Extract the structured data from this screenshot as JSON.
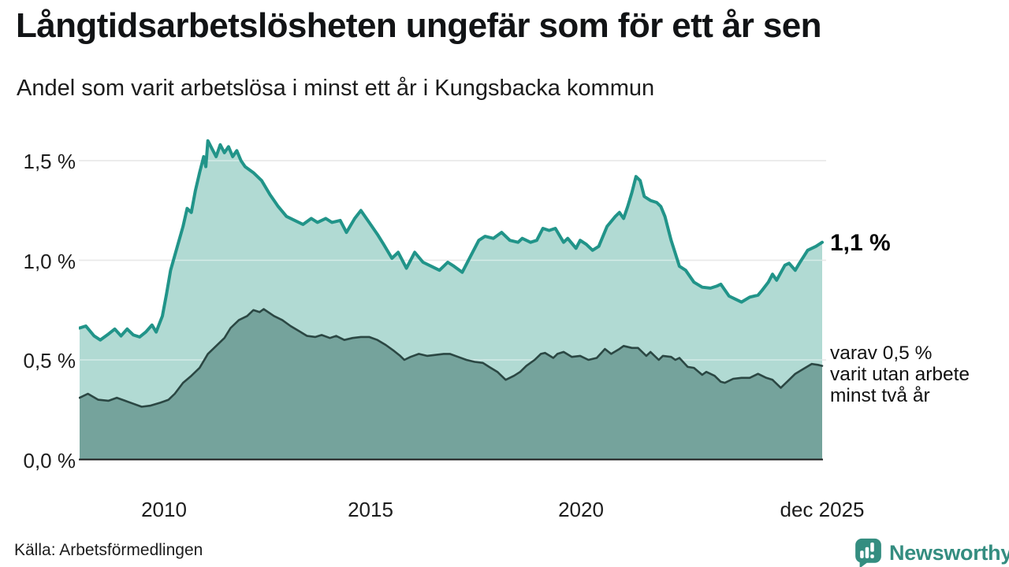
{
  "header": {
    "title": "Långtidsarbetslösheten ungefär som för ett år sen",
    "subtitle": "Andel som varit arbetslösa i minst ett år i Kungsbacka kommun"
  },
  "annotations": {
    "latest_total": "1,1 %",
    "secondary_lines": [
      "varav 0,5 %",
      "varit utan arbete",
      "minst två år"
    ]
  },
  "footer": {
    "source": "Källa: Arbetsförmedlingen",
    "brand": "Newsworthy"
  },
  "colors": {
    "line_one_year": "#219489",
    "fill_one_year": "#b1dad3",
    "line_two_year": "#2b4743",
    "fill_two_year": "#75a39c",
    "gridline": "#d8d8d8",
    "axis_line": "#1a1a1a",
    "brand_teal": "#348d80"
  },
  "chart_data": {
    "type": "area",
    "title": "Långtidsarbetslösheten ungefär som för ett år sen",
    "subtitle": "Andel som varit arbetslösa i minst ett år i Kungsbacka kommun",
    "xlabel": "",
    "ylabel": "",
    "grid": true,
    "legend_position": "none",
    "x_range": [
      2008.0,
      2025.97
    ],
    "x_axis": {
      "ticks": [
        {
          "label": "2010",
          "year": 2010
        },
        {
          "label": "2015",
          "year": 2015
        },
        {
          "label": "2020",
          "year": 2020
        },
        {
          "label": "dec 2025",
          "year": 2025.92
        }
      ]
    },
    "y_axis": {
      "range": [
        0,
        1.66
      ],
      "unit": "%",
      "ticks": [
        {
          "label": "0,0 %",
          "value": 0.0
        },
        {
          "label": "0,5 %",
          "value": 0.5
        },
        {
          "label": "1,0 %",
          "value": 1.0
        },
        {
          "label": "1,5 %",
          "value": 1.5
        }
      ]
    },
    "series": [
      {
        "name": "Andel arbetslösa minst ett år",
        "color": "#219489",
        "fill": "#b1dad3",
        "line_width": 4,
        "last_value_label": "1,1 %",
        "points": [
          [
            2008.0,
            0.66
          ],
          [
            2008.15,
            0.67
          ],
          [
            2008.35,
            0.62
          ],
          [
            2008.5,
            0.6
          ],
          [
            2008.7,
            0.63
          ],
          [
            2008.85,
            0.655
          ],
          [
            2009.0,
            0.62
          ],
          [
            2009.15,
            0.655
          ],
          [
            2009.3,
            0.625
          ],
          [
            2009.45,
            0.615
          ],
          [
            2009.6,
            0.64
          ],
          [
            2009.75,
            0.675
          ],
          [
            2009.85,
            0.64
          ],
          [
            2010.0,
            0.72
          ],
          [
            2010.1,
            0.83
          ],
          [
            2010.2,
            0.95
          ],
          [
            2010.35,
            1.06
          ],
          [
            2010.5,
            1.17
          ],
          [
            2010.6,
            1.26
          ],
          [
            2010.7,
            1.24
          ],
          [
            2010.8,
            1.35
          ],
          [
            2010.9,
            1.44
          ],
          [
            2011.0,
            1.52
          ],
          [
            2011.05,
            1.47
          ],
          [
            2011.1,
            1.6
          ],
          [
            2011.2,
            1.56
          ],
          [
            2011.3,
            1.52
          ],
          [
            2011.4,
            1.58
          ],
          [
            2011.5,
            1.54
          ],
          [
            2011.6,
            1.57
          ],
          [
            2011.7,
            1.52
          ],
          [
            2011.8,
            1.55
          ],
          [
            2011.9,
            1.5
          ],
          [
            2012.0,
            1.47
          ],
          [
            2012.2,
            1.44
          ],
          [
            2012.4,
            1.4
          ],
          [
            2012.6,
            1.33
          ],
          [
            2012.8,
            1.27
          ],
          [
            2013.0,
            1.22
          ],
          [
            2013.2,
            1.2
          ],
          [
            2013.4,
            1.18
          ],
          [
            2013.6,
            1.21
          ],
          [
            2013.75,
            1.19
          ],
          [
            2013.95,
            1.21
          ],
          [
            2014.1,
            1.19
          ],
          [
            2014.3,
            1.2
          ],
          [
            2014.45,
            1.14
          ],
          [
            2014.65,
            1.21
          ],
          [
            2014.8,
            1.25
          ],
          [
            2015.0,
            1.19
          ],
          [
            2015.2,
            1.13
          ],
          [
            2015.35,
            1.08
          ],
          [
            2015.55,
            1.01
          ],
          [
            2015.7,
            1.04
          ],
          [
            2015.9,
            0.96
          ],
          [
            2016.1,
            1.04
          ],
          [
            2016.3,
            0.99
          ],
          [
            2016.5,
            0.97
          ],
          [
            2016.7,
            0.95
          ],
          [
            2016.9,
            0.99
          ],
          [
            2017.05,
            0.97
          ],
          [
            2017.25,
            0.94
          ],
          [
            2017.45,
            1.02
          ],
          [
            2017.65,
            1.1
          ],
          [
            2017.8,
            1.12
          ],
          [
            2018.0,
            1.11
          ],
          [
            2018.2,
            1.14
          ],
          [
            2018.4,
            1.1
          ],
          [
            2018.6,
            1.09
          ],
          [
            2018.7,
            1.11
          ],
          [
            2018.9,
            1.09
          ],
          [
            2019.05,
            1.1
          ],
          [
            2019.2,
            1.16
          ],
          [
            2019.35,
            1.15
          ],
          [
            2019.5,
            1.16
          ],
          [
            2019.7,
            1.09
          ],
          [
            2019.8,
            1.11
          ],
          [
            2020.0,
            1.06
          ],
          [
            2020.1,
            1.1
          ],
          [
            2020.25,
            1.08
          ],
          [
            2020.4,
            1.05
          ],
          [
            2020.55,
            1.07
          ],
          [
            2020.75,
            1.17
          ],
          [
            2020.95,
            1.22
          ],
          [
            2021.05,
            1.24
          ],
          [
            2021.15,
            1.21
          ],
          [
            2021.25,
            1.27
          ],
          [
            2021.35,
            1.34
          ],
          [
            2021.45,
            1.42
          ],
          [
            2021.55,
            1.4
          ],
          [
            2021.65,
            1.32
          ],
          [
            2021.8,
            1.3
          ],
          [
            2021.95,
            1.29
          ],
          [
            2022.05,
            1.27
          ],
          [
            2022.15,
            1.22
          ],
          [
            2022.3,
            1.1
          ],
          [
            2022.5,
            0.97
          ],
          [
            2022.65,
            0.95
          ],
          [
            2022.85,
            0.89
          ],
          [
            2023.05,
            0.865
          ],
          [
            2023.25,
            0.86
          ],
          [
            2023.4,
            0.87
          ],
          [
            2023.5,
            0.88
          ],
          [
            2023.7,
            0.82
          ],
          [
            2023.9,
            0.8
          ],
          [
            2024.0,
            0.79
          ],
          [
            2024.2,
            0.815
          ],
          [
            2024.4,
            0.825
          ],
          [
            2024.5,
            0.85
          ],
          [
            2024.65,
            0.89
          ],
          [
            2024.75,
            0.93
          ],
          [
            2024.85,
            0.9
          ],
          [
            2025.05,
            0.975
          ],
          [
            2025.15,
            0.985
          ],
          [
            2025.3,
            0.95
          ],
          [
            2025.4,
            0.985
          ],
          [
            2025.6,
            1.05
          ],
          [
            2025.8,
            1.07
          ],
          [
            2025.95,
            1.09
          ]
        ]
      },
      {
        "name": "Andel arbetslösa minst två år",
        "color": "#2b4743",
        "fill": "#75a39c",
        "line_width": 2.6,
        "last_value_label": "0,5 %",
        "points": [
          [
            2008.0,
            0.31
          ],
          [
            2008.2,
            0.33
          ],
          [
            2008.45,
            0.3
          ],
          [
            2008.7,
            0.295
          ],
          [
            2008.9,
            0.31
          ],
          [
            2009.1,
            0.295
          ],
          [
            2009.3,
            0.28
          ],
          [
            2009.5,
            0.265
          ],
          [
            2009.7,
            0.27
          ],
          [
            2009.95,
            0.285
          ],
          [
            2010.15,
            0.3
          ],
          [
            2010.3,
            0.33
          ],
          [
            2010.5,
            0.385
          ],
          [
            2010.7,
            0.42
          ],
          [
            2010.9,
            0.46
          ],
          [
            2011.1,
            0.53
          ],
          [
            2011.3,
            0.57
          ],
          [
            2011.5,
            0.61
          ],
          [
            2011.65,
            0.66
          ],
          [
            2011.85,
            0.7
          ],
          [
            2012.05,
            0.72
          ],
          [
            2012.2,
            0.75
          ],
          [
            2012.35,
            0.74
          ],
          [
            2012.45,
            0.755
          ],
          [
            2012.7,
            0.72
          ],
          [
            2012.9,
            0.7
          ],
          [
            2013.1,
            0.67
          ],
          [
            2013.3,
            0.645
          ],
          [
            2013.5,
            0.62
          ],
          [
            2013.7,
            0.615
          ],
          [
            2013.85,
            0.625
          ],
          [
            2014.05,
            0.61
          ],
          [
            2014.2,
            0.62
          ],
          [
            2014.4,
            0.6
          ],
          [
            2014.6,
            0.61
          ],
          [
            2014.8,
            0.615
          ],
          [
            2015.0,
            0.615
          ],
          [
            2015.2,
            0.6
          ],
          [
            2015.4,
            0.575
          ],
          [
            2015.6,
            0.545
          ],
          [
            2015.75,
            0.52
          ],
          [
            2015.85,
            0.5
          ],
          [
            2016.0,
            0.515
          ],
          [
            2016.2,
            0.53
          ],
          [
            2016.4,
            0.52
          ],
          [
            2016.6,
            0.525
          ],
          [
            2016.8,
            0.53
          ],
          [
            2016.95,
            0.53
          ],
          [
            2017.15,
            0.515
          ],
          [
            2017.35,
            0.5
          ],
          [
            2017.55,
            0.49
          ],
          [
            2017.75,
            0.485
          ],
          [
            2017.9,
            0.465
          ],
          [
            2018.1,
            0.44
          ],
          [
            2018.3,
            0.4
          ],
          [
            2018.5,
            0.42
          ],
          [
            2018.65,
            0.44
          ],
          [
            2018.8,
            0.47
          ],
          [
            2019.0,
            0.5
          ],
          [
            2019.15,
            0.53
          ],
          [
            2019.25,
            0.535
          ],
          [
            2019.45,
            0.51
          ],
          [
            2019.55,
            0.53
          ],
          [
            2019.7,
            0.54
          ],
          [
            2019.9,
            0.515
          ],
          [
            2020.1,
            0.52
          ],
          [
            2020.3,
            0.5
          ],
          [
            2020.5,
            0.51
          ],
          [
            2020.7,
            0.555
          ],
          [
            2020.85,
            0.53
          ],
          [
            2021.05,
            0.555
          ],
          [
            2021.15,
            0.57
          ],
          [
            2021.35,
            0.56
          ],
          [
            2021.5,
            0.56
          ],
          [
            2021.7,
            0.52
          ],
          [
            2021.8,
            0.54
          ],
          [
            2022.0,
            0.5
          ],
          [
            2022.1,
            0.52
          ],
          [
            2022.3,
            0.515
          ],
          [
            2022.4,
            0.5
          ],
          [
            2022.5,
            0.51
          ],
          [
            2022.7,
            0.465
          ],
          [
            2022.85,
            0.46
          ],
          [
            2023.05,
            0.425
          ],
          [
            2023.15,
            0.44
          ],
          [
            2023.35,
            0.42
          ],
          [
            2023.5,
            0.39
          ],
          [
            2023.6,
            0.385
          ],
          [
            2023.8,
            0.405
          ],
          [
            2024.0,
            0.41
          ],
          [
            2024.2,
            0.41
          ],
          [
            2024.4,
            0.43
          ],
          [
            2024.6,
            0.41
          ],
          [
            2024.75,
            0.4
          ],
          [
            2024.95,
            0.36
          ],
          [
            2025.15,
            0.4
          ],
          [
            2025.3,
            0.43
          ],
          [
            2025.5,
            0.455
          ],
          [
            2025.7,
            0.48
          ],
          [
            2025.85,
            0.475
          ],
          [
            2025.95,
            0.47
          ]
        ]
      }
    ]
  }
}
